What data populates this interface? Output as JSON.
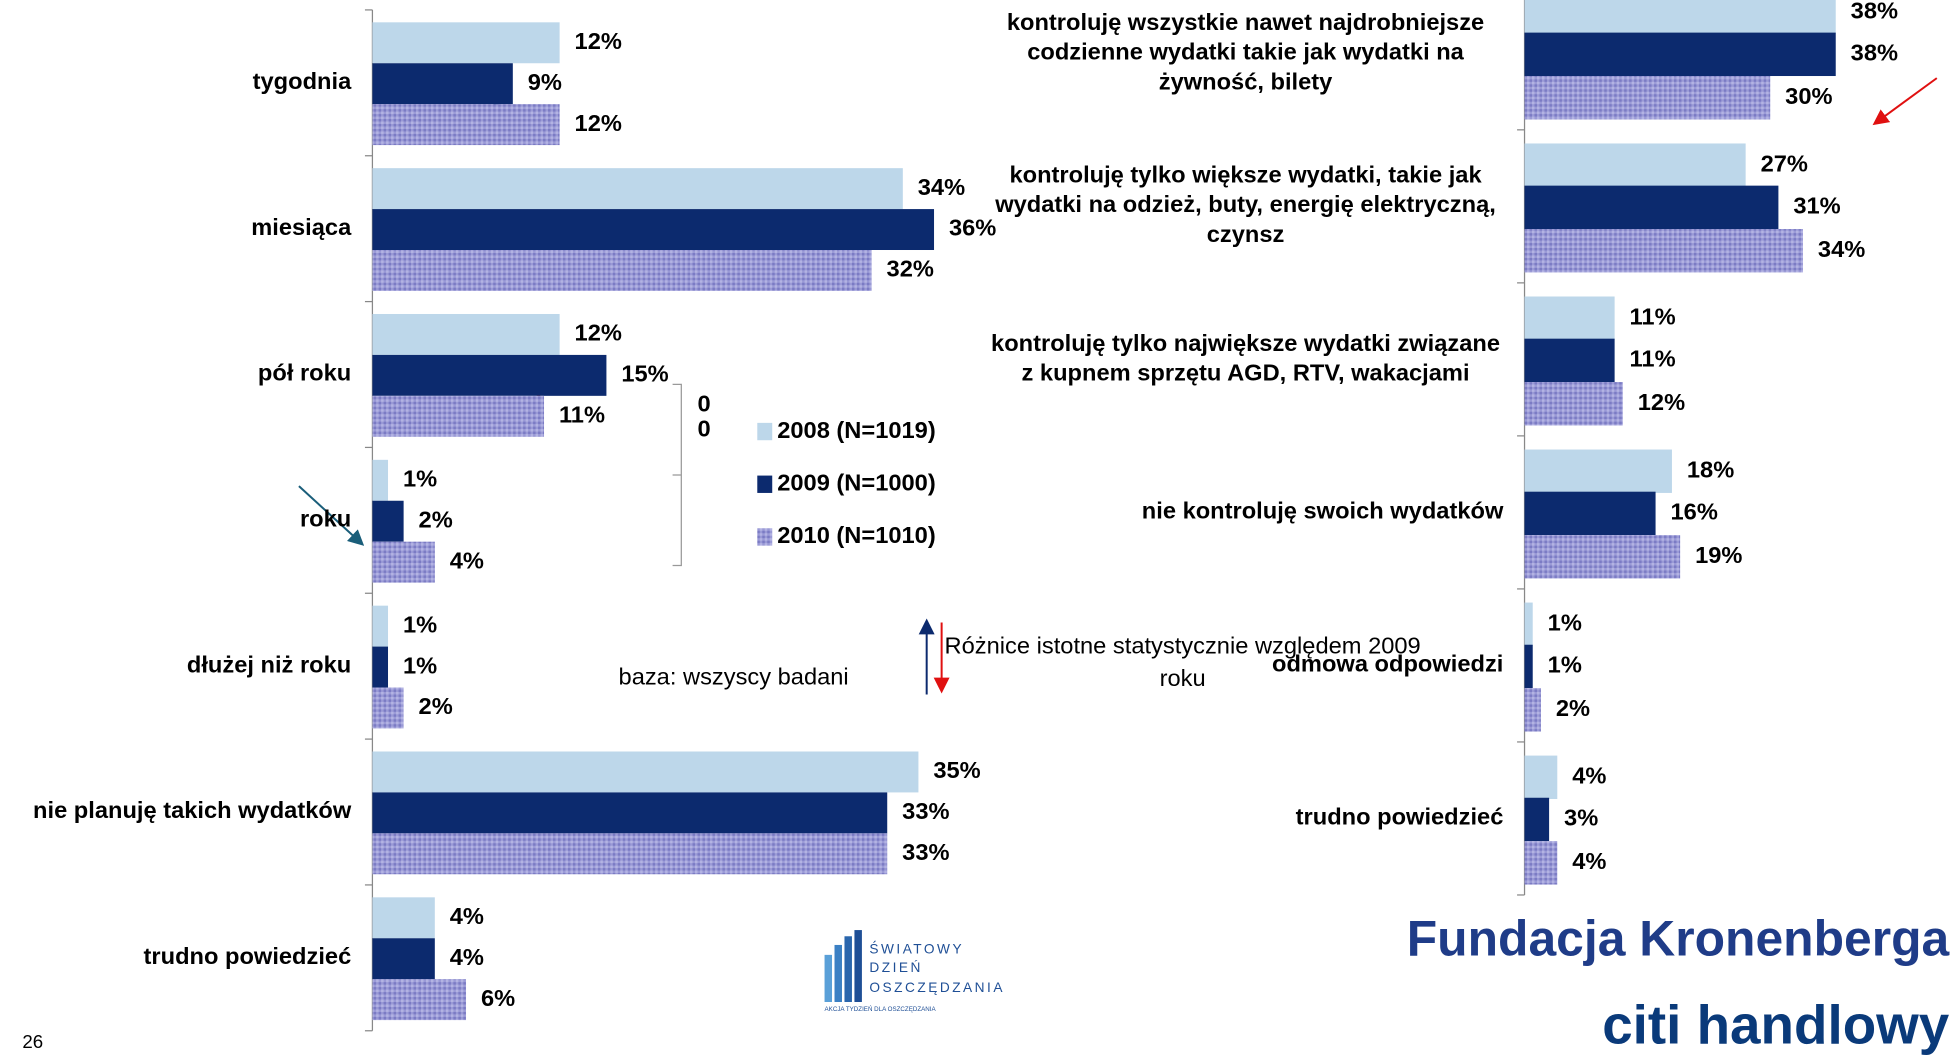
{
  "chart_data": [
    {
      "type": "bar",
      "orientation": "horizontal",
      "categories": [
        "tygodnia",
        "miesiąca",
        "pół roku",
        "roku",
        "dłużej niż roku",
        "nie planuję takich wydatków",
        "trudno powiedzieć"
      ],
      "series": [
        {
          "name": "2008 (N=1019)",
          "color": "#bdd7ea",
          "values": [
            12,
            34,
            12,
            1,
            1,
            35,
            4
          ],
          "value_labels": [
            "12%",
            "34%",
            "12%",
            "1%",
            "1%",
            "35%",
            "4%"
          ]
        },
        {
          "name": "2009 (N=1000)",
          "color": "#0c2a6e",
          "values": [
            9,
            36,
            15,
            2,
            1,
            33,
            4
          ],
          "value_labels": [
            "9%",
            "36%",
            "15%",
            "2%",
            "1%",
            "33%",
            "4%"
          ]
        },
        {
          "name": "2010 (N=1010)",
          "color": "#9a9ad6",
          "pattern": true,
          "values": [
            12,
            32,
            11,
            4,
            2,
            33,
            6
          ],
          "value_labels": [
            "12%",
            "32%",
            "11%",
            "4%",
            "2%",
            "33%",
            "6%"
          ]
        }
      ],
      "xlim": [
        0,
        40
      ],
      "legend": "center",
      "legend_extra": [
        "0",
        "0"
      ]
    },
    {
      "type": "bar",
      "orientation": "horizontal",
      "categories": [
        "kontroluję wszystkie nawet najdrobniejsze codzienne wydatki takie jak wydatki na żywność, bilety",
        "kontroluję tylko większe wydatki, takie jak wydatki na odzież, buty, energię elektryczną, czynsz",
        "kontroluję tylko największe wydatki związane z kupnem sprzętu AGD, RTV, wakacjami",
        "nie kontroluję swoich wydatków",
        "odmowa odpowiedzi",
        "trudno powiedzieć"
      ],
      "series": [
        {
          "color": "#bdd7ea",
          "values": [
            38,
            27,
            11,
            18,
            1,
            4
          ],
          "value_labels": [
            "38%",
            "27%",
            "11%",
            "18%",
            "1%",
            "4%"
          ]
        },
        {
          "color": "#0c2a6e",
          "values": [
            38,
            31,
            11,
            16,
            1,
            3
          ],
          "value_labels": [
            "38%",
            "31%",
            "11%",
            "16%",
            "1%",
            "3%"
          ]
        },
        {
          "color": "#9a9ad6",
          "pattern": true,
          "values": [
            30,
            34,
            12,
            19,
            2,
            4
          ],
          "value_labels": [
            "30%",
            "34%",
            "12%",
            "19%",
            "2%",
            "4%"
          ]
        }
      ],
      "xlim": [
        0,
        40
      ]
    }
  ],
  "notes": {
    "base": "baza: wszyscy badani",
    "significance": "Różnice istotne statystycznie względem 2009 roku"
  },
  "page_number": "26",
  "logos": {
    "fundacja": "Fundacja Kronenberga",
    "citi": "citi handlowy",
    "swiatowy": [
      "ŚWIATOWY",
      "DZIEŃ",
      "OSZCZĘDZANIA"
    ],
    "swiatowy_sub": "AKCJA TYDZIEŃ DLA OSZCZĘDZANIA"
  }
}
